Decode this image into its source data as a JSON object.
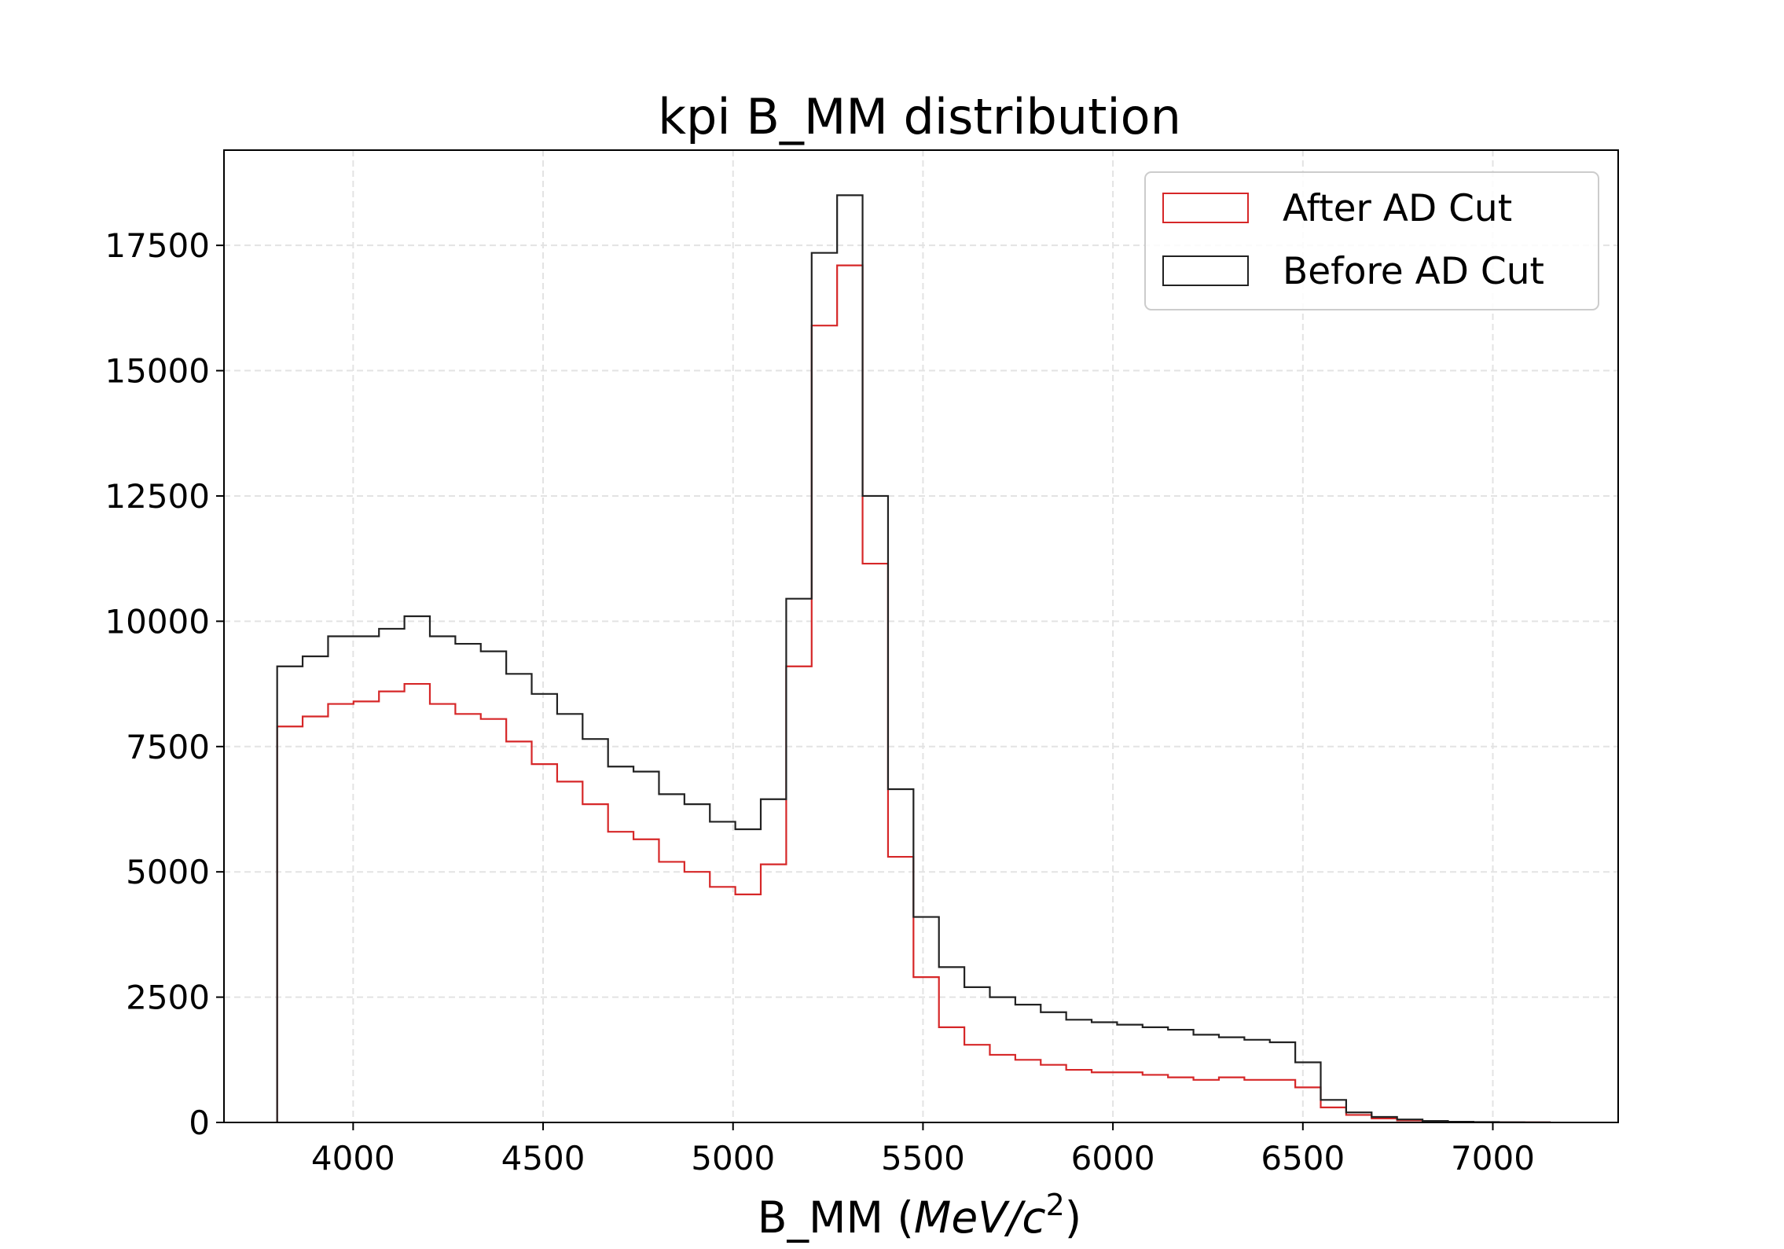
{
  "chart_data": {
    "type": "histogram",
    "title": "kpi B_MM distribution",
    "xlabel": "B_MM (MeV/c²)",
    "xlabel_parts": {
      "prefix": "B_MM (",
      "italic": "MeV/c",
      "sup": "2",
      "suffix": ")"
    },
    "ylabel": "",
    "xlim": [
      3660,
      7330
    ],
    "ylim": [
      0,
      19400
    ],
    "xticks": [
      4000,
      4500,
      5000,
      5500,
      6000,
      6500,
      7000
    ],
    "yticks": [
      0,
      2500,
      5000,
      7500,
      10000,
      12500,
      15000,
      17500
    ],
    "grid": true,
    "legend_position": "top-right",
    "bin_edges": [
      3800,
      3867,
      3934,
      4001,
      4068,
      4135,
      4202,
      4269,
      4336,
      4403,
      4470,
      4537,
      4604,
      4671,
      4738,
      4805,
      4872,
      4939,
      5006,
      5073,
      5140,
      5207,
      5274,
      5341,
      5408,
      5475,
      5542,
      5609,
      5676,
      5743,
      5810,
      5877,
      5944,
      6011,
      6078,
      6145,
      6212,
      6279,
      6346,
      6413,
      6480,
      6547,
      6614,
      6681,
      6748,
      6815,
      6882,
      6949,
      7016,
      7083,
      7150
    ],
    "series": [
      {
        "name": "After AD Cut",
        "color": "#d62728",
        "values": [
          7900,
          8100,
          8350,
          8400,
          8600,
          8750,
          8350,
          8150,
          8050,
          7600,
          7150,
          6800,
          6350,
          5800,
          5650,
          5200,
          5000,
          4700,
          4550,
          5150,
          9100,
          15900,
          17100,
          11150,
          5300,
          2900,
          1900,
          1550,
          1350,
          1250,
          1150,
          1050,
          1000,
          1000,
          950,
          900,
          850,
          900,
          850,
          850,
          700,
          300,
          150,
          80,
          40,
          20,
          10,
          5,
          3,
          2
        ]
      },
      {
        "name": "Before AD Cut",
        "color": "#222222",
        "values": [
          9100,
          9300,
          9700,
          9700,
          9850,
          10100,
          9700,
          9550,
          9400,
          8950,
          8550,
          8150,
          7650,
          7100,
          7000,
          6550,
          6350,
          6000,
          5850,
          6450,
          10450,
          17350,
          18500,
          12500,
          6650,
          4100,
          3100,
          2700,
          2500,
          2350,
          2200,
          2050,
          2000,
          1950,
          1900,
          1850,
          1750,
          1700,
          1650,
          1600,
          1200,
          450,
          200,
          110,
          60,
          30,
          15,
          8,
          4,
          2
        ]
      }
    ]
  }
}
